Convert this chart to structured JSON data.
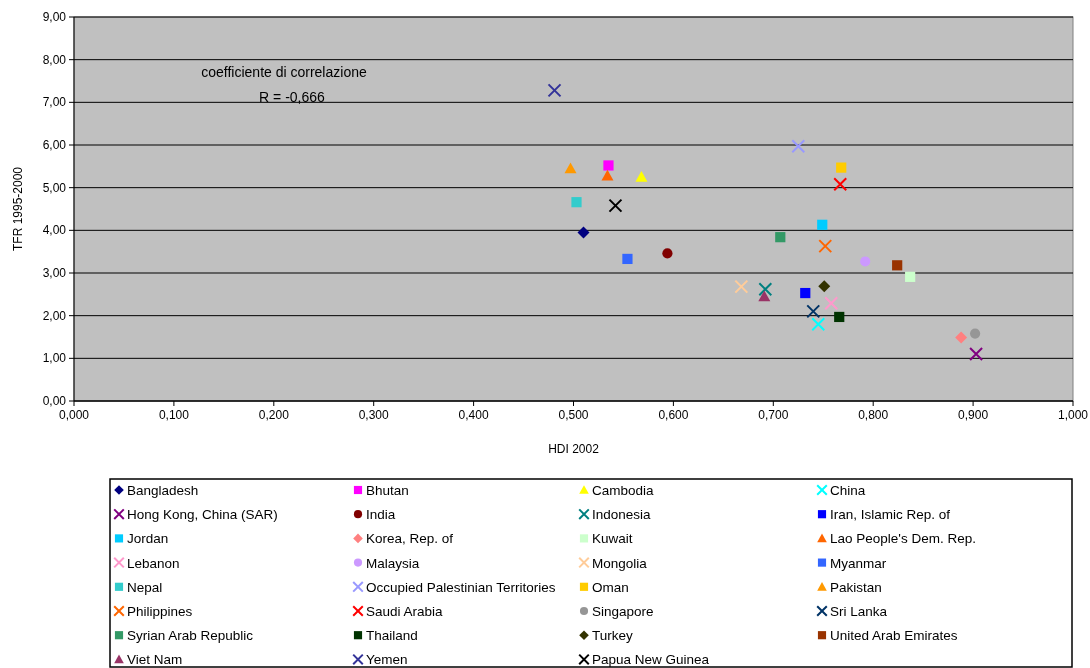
{
  "chart_data": {
    "type": "scatter",
    "xlabel": "HDI 2002",
    "ylabel": "TFR 1995-2000",
    "annotations": [
      "coefficiente di correlazione",
      "R = -0,666"
    ],
    "xlim": [
      0,
      1
    ],
    "ylim": [
      0,
      9
    ],
    "xticks": [
      {
        "value": 0,
        "label": "0,000"
      },
      {
        "value": 0.1,
        "label": "0,100"
      },
      {
        "value": 0.2,
        "label": "0,200"
      },
      {
        "value": 0.3,
        "label": "0,300"
      },
      {
        "value": 0.4,
        "label": "0,400"
      },
      {
        "value": 0.5,
        "label": "0,500"
      },
      {
        "value": 0.6,
        "label": "0,600"
      },
      {
        "value": 0.7,
        "label": "0,700"
      },
      {
        "value": 0.8,
        "label": "0,800"
      },
      {
        "value": 0.9,
        "label": "0,900"
      },
      {
        "value": 1,
        "label": "1,000"
      }
    ],
    "yticks": [
      {
        "value": 0,
        "label": "0,00"
      },
      {
        "value": 1,
        "label": "1,00"
      },
      {
        "value": 2,
        "label": "2,00"
      },
      {
        "value": 3,
        "label": "3,00"
      },
      {
        "value": 4,
        "label": "4,00"
      },
      {
        "value": 5,
        "label": "5,00"
      },
      {
        "value": 6,
        "label": "6,00"
      },
      {
        "value": 7,
        "label": "7,00"
      },
      {
        "value": 8,
        "label": "8,00"
      },
      {
        "value": 9,
        "label": "9,00"
      }
    ],
    "grid": "y",
    "legend": "bottom",
    "series": [
      {
        "name": "Bangladesh",
        "color": "#000080",
        "marker": "diamond",
        "x": [
          0.51
        ],
        "values": [
          3.95
        ]
      },
      {
        "name": "Bhutan",
        "color": "#ff00ff",
        "marker": "square",
        "x": [
          0.535
        ],
        "values": [
          5.52
        ]
      },
      {
        "name": "Cambodia",
        "color": "#ffff00",
        "marker": "triangle",
        "x": [
          0.568
        ],
        "values": [
          5.25
        ]
      },
      {
        "name": "China",
        "color": "#00ffff",
        "marker": "cross",
        "x": [
          0.745
        ],
        "values": [
          1.8
        ]
      },
      {
        "name": "Hong Kong, China (SAR)",
        "color": "#800080",
        "marker": "cross",
        "x": [
          0.903
        ],
        "values": [
          1.1
        ]
      },
      {
        "name": "India",
        "color": "#800000",
        "marker": "circle",
        "x": [
          0.594
        ],
        "values": [
          3.46
        ]
      },
      {
        "name": "Indonesia",
        "color": "#008080",
        "marker": "cross",
        "x": [
          0.692
        ],
        "values": [
          2.62
        ]
      },
      {
        "name": "Iran, Islamic Rep. of",
        "color": "#0000ff",
        "marker": "square",
        "x": [
          0.732
        ],
        "values": [
          2.53
        ]
      },
      {
        "name": "Jordan",
        "color": "#00ccff",
        "marker": "square",
        "x": [
          0.749
        ],
        "values": [
          4.13
        ]
      },
      {
        "name": "Korea, Rep. of",
        "color": "#ff8080",
        "marker": "diamond",
        "x": [
          0.888
        ],
        "values": [
          1.49
        ]
      },
      {
        "name": "Kuwait",
        "color": "#ccffcc",
        "marker": "square",
        "x": [
          0.837
        ],
        "values": [
          2.91
        ]
      },
      {
        "name": "Lao People's Dem.  Rep.",
        "color": "#ff6600",
        "marker": "triangle",
        "x": [
          0.534
        ],
        "values": [
          5.28
        ]
      },
      {
        "name": "Lebanon",
        "color": "#ff99cc",
        "marker": "cross",
        "x": [
          0.758
        ],
        "values": [
          2.29
        ]
      },
      {
        "name": "Malaysia",
        "color": "#cc99ff",
        "marker": "circle",
        "x": [
          0.792
        ],
        "values": [
          3.27
        ]
      },
      {
        "name": "Mongolia",
        "color": "#ffcc99",
        "marker": "cross",
        "x": [
          0.668
        ],
        "values": [
          2.68
        ]
      },
      {
        "name": "Myanmar",
        "color": "#3366ff",
        "marker": "square",
        "x": [
          0.554
        ],
        "values": [
          3.33
        ]
      },
      {
        "name": "Nepal",
        "color": "#33cccc",
        "marker": "square",
        "x": [
          0.503
        ],
        "values": [
          4.66
        ]
      },
      {
        "name": "Occupied Palestinian Territories",
        "color": "#9999ff",
        "marker": "cross",
        "x": [
          0.725
        ],
        "values": [
          5.97
        ]
      },
      {
        "name": "Oman",
        "color": "#ffcc00",
        "marker": "square",
        "x": [
          0.768
        ],
        "values": [
          5.47
        ]
      },
      {
        "name": "Pakistan",
        "color": "#ff9900",
        "marker": "triangle",
        "x": [
          0.497
        ],
        "values": [
          5.45
        ]
      },
      {
        "name": "Philippines",
        "color": "#ff6600",
        "marker": "cross",
        "x": [
          0.752
        ],
        "values": [
          3.63
        ]
      },
      {
        "name": "Saudi Arabia",
        "color": "#ff0000",
        "marker": "cross",
        "x": [
          0.767
        ],
        "values": [
          5.08
        ]
      },
      {
        "name": "Singapore",
        "color": "#969696",
        "marker": "circle",
        "x": [
          0.902
        ],
        "values": [
          1.58
        ]
      },
      {
        "name": "Sri Lanka",
        "color": "#003366",
        "marker": "cross",
        "x": [
          0.74
        ],
        "values": [
          2.1
        ]
      },
      {
        "name": "Syrian Arab Republic",
        "color": "#339966",
        "marker": "square",
        "x": [
          0.707
        ],
        "values": [
          3.84
        ]
      },
      {
        "name": "Thailand",
        "color": "#003300",
        "marker": "square",
        "x": [
          0.766
        ],
        "values": [
          1.97
        ]
      },
      {
        "name": "Turkey",
        "color": "#333300",
        "marker": "diamond",
        "x": [
          0.751
        ],
        "values": [
          2.69
        ]
      },
      {
        "name": "United Arab Emirates",
        "color": "#993300",
        "marker": "square",
        "x": [
          0.824
        ],
        "values": [
          3.18
        ]
      },
      {
        "name": "Viet Nam",
        "color": "#993366",
        "marker": "triangle",
        "x": [
          0.691
        ],
        "values": [
          2.45
        ]
      },
      {
        "name": "Yemen",
        "color": "#333399",
        "marker": "cross",
        "x": [
          0.481
        ],
        "values": [
          7.28
        ]
      },
      {
        "name": "Papua New Guinea",
        "color": "#000000",
        "marker": "cross",
        "x": [
          0.542
        ],
        "values": [
          4.58
        ]
      }
    ]
  }
}
